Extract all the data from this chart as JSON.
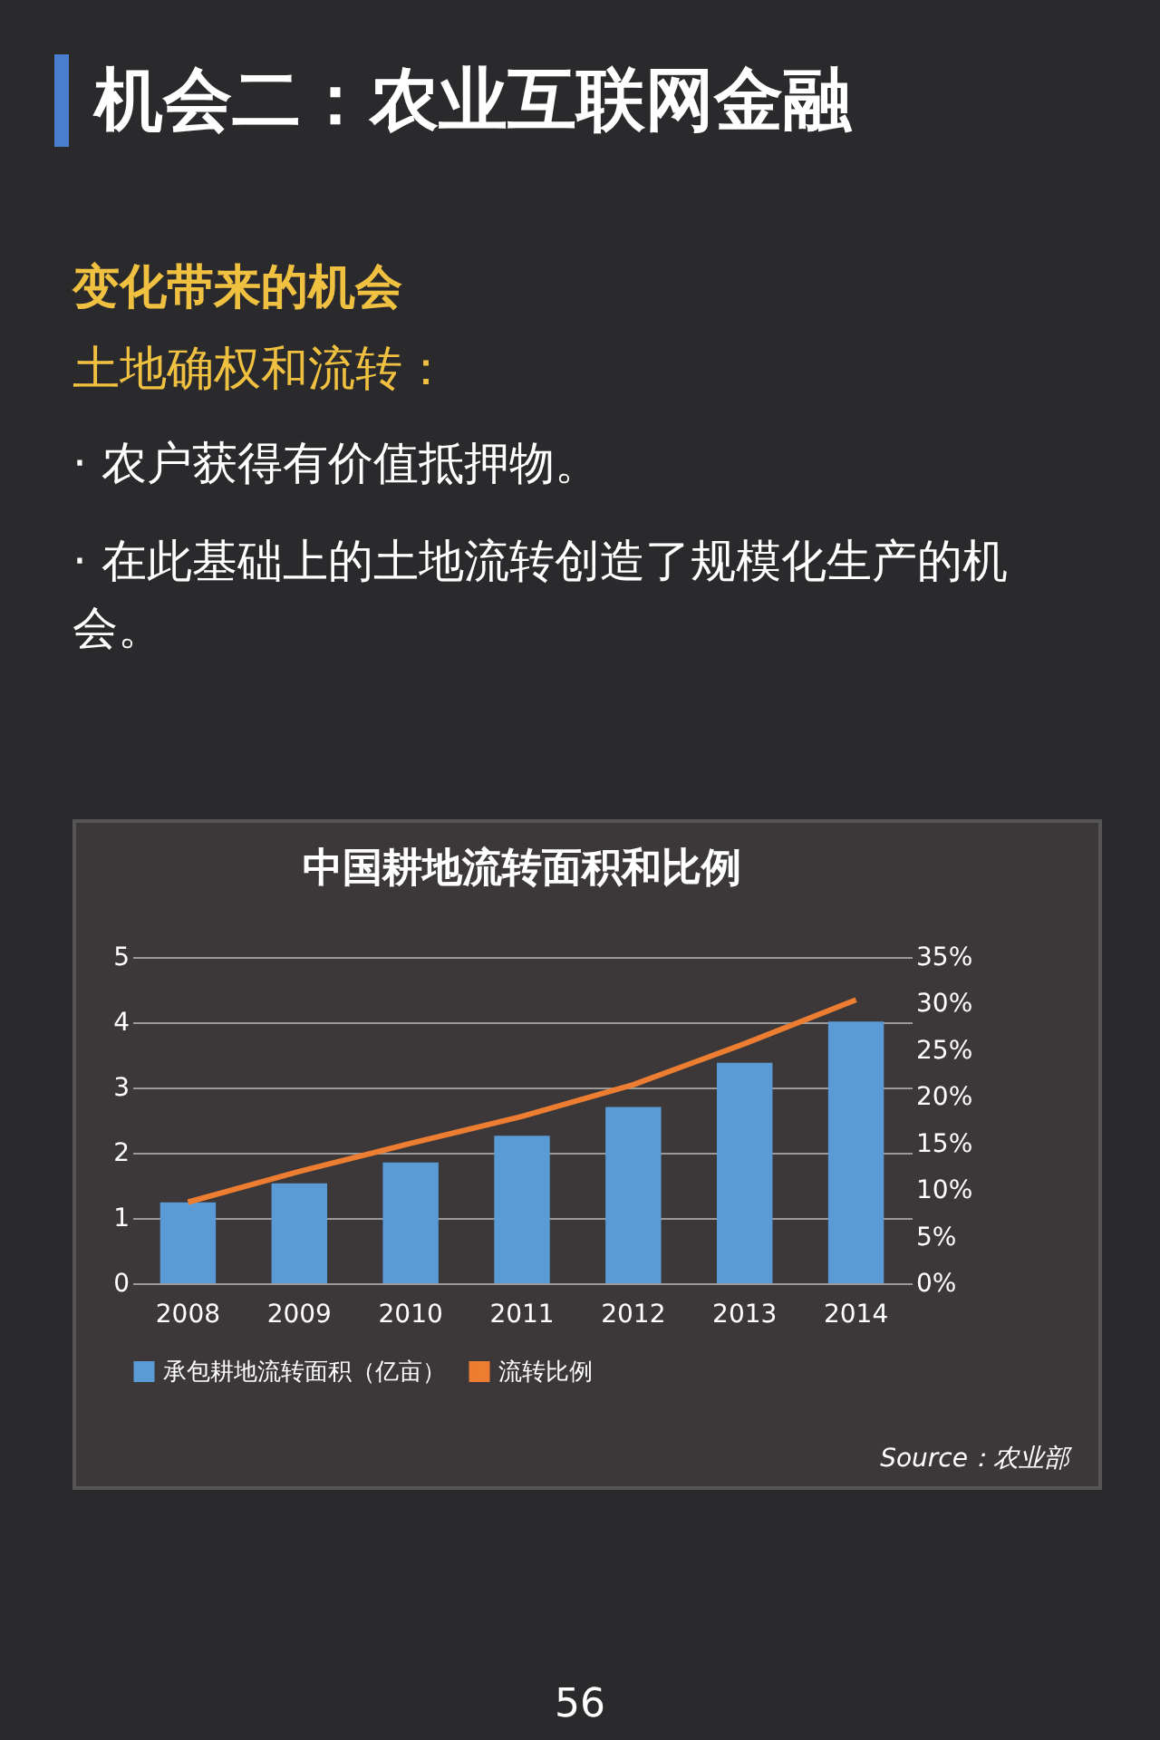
{
  "chart_data": {
    "type": "bar",
    "title": "中国耕地流转面积和比例",
    "annotations": [
      "机会二：农业互联网金融",
      "变化带来的机会",
      "土地确权和流转：",
      "· 农户获得有价值抵押物。",
      "· 在此基础上的土地流转创造了规模化生产的机会。",
      "Source：农业部",
      "56"
    ],
    "categories": [
      "2008",
      "2009",
      "2010",
      "2011",
      "2012",
      "2013",
      "2014"
    ],
    "series": [
      {
        "name": "承包耕地流转面积（亿亩）",
        "color": "#5b9bd5",
        "values": [
          1.24,
          1.53,
          1.85,
          2.26,
          2.7,
          3.38,
          4.01
        ]
      },
      {
        "name": "流转比例",
        "type": "line",
        "axis": "y2",
        "color": "#ed7d31",
        "values": [
          8.7,
          12.0,
          15.0,
          17.9,
          21.3,
          25.7,
          30.4
        ]
      }
    ],
    "ylim": [
      0,
      5
    ],
    "yticks": [
      0,
      1,
      2,
      3,
      4,
      5
    ],
    "y2lim": [
      0,
      35
    ],
    "y2ticks": [
      {
        "value": 0,
        "label": "0%"
      },
      {
        "value": 5,
        "label": "5%"
      },
      {
        "value": 10,
        "label": "10%"
      },
      {
        "value": 15,
        "label": "15%"
      },
      {
        "value": 20,
        "label": "20%"
      },
      {
        "value": 25,
        "label": "25%"
      },
      {
        "value": 30,
        "label": "30%"
      },
      {
        "value": 35,
        "label": "35%"
      }
    ],
    "grid": "y",
    "legend": "bottom"
  }
}
